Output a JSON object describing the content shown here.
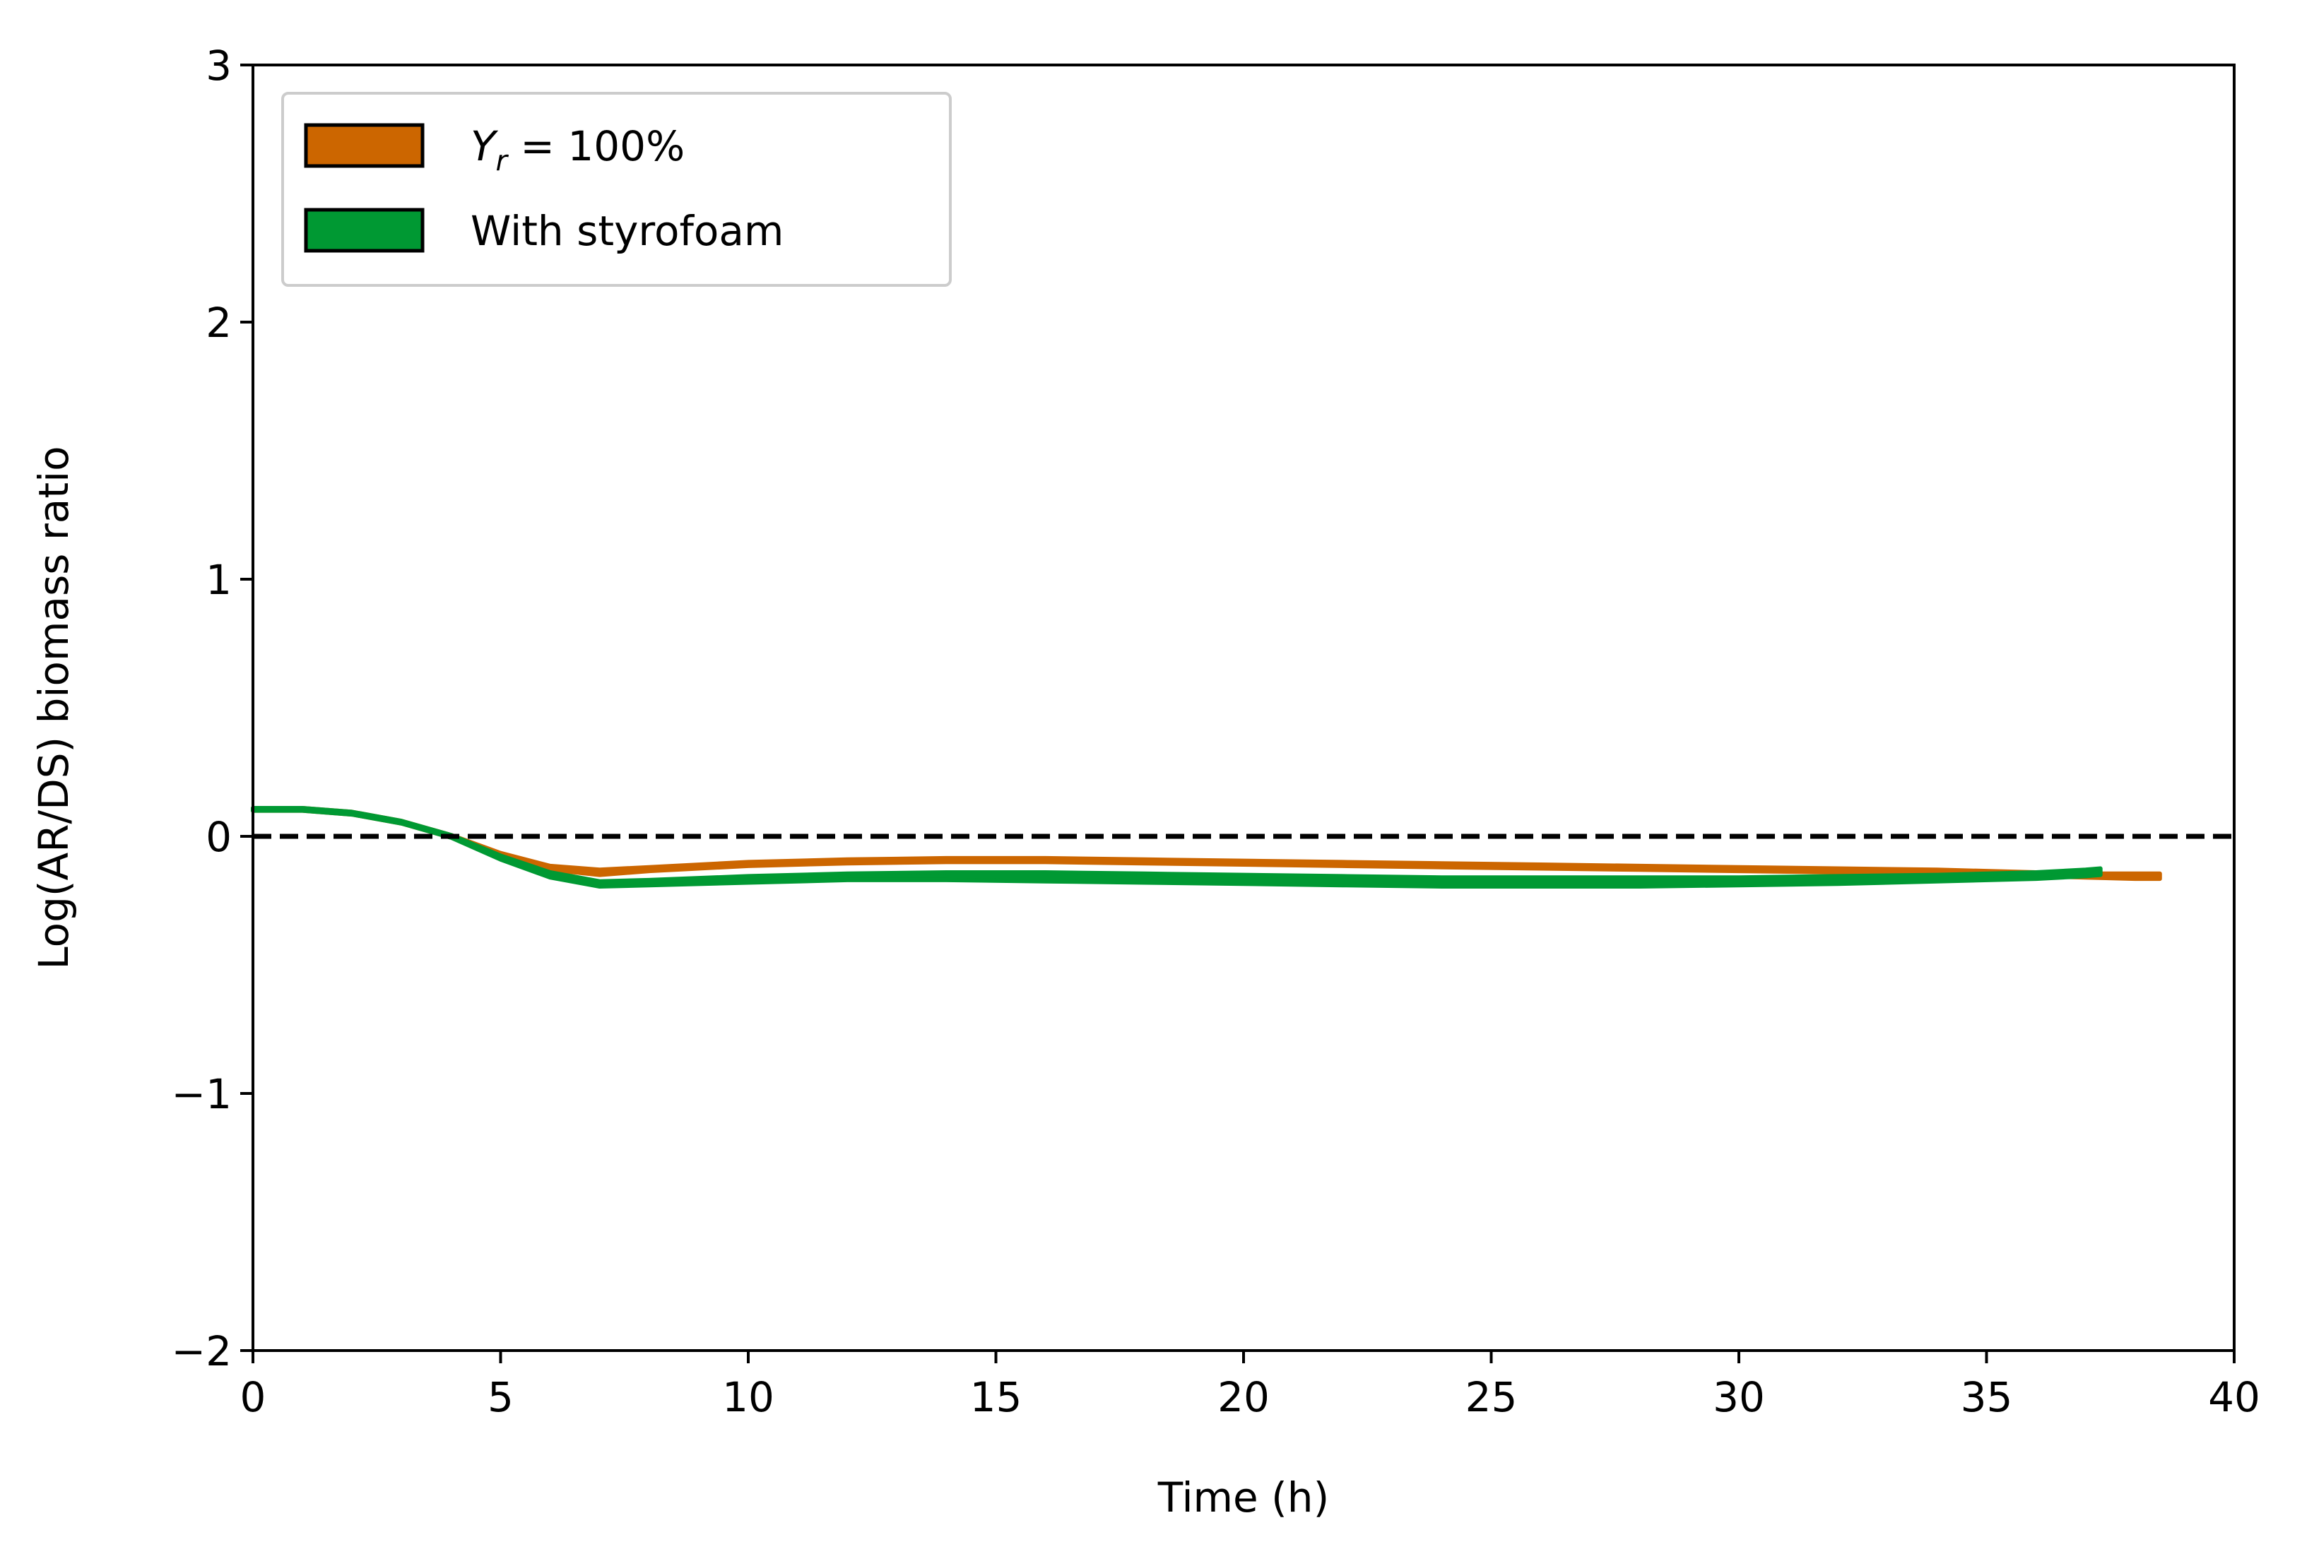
{
  "chart_data": {
    "type": "area",
    "xlabel": "Time (h)",
    "ylabel": "Log(AR/DS) biomass ratio",
    "xlim": [
      0,
      40
    ],
    "ylim": [
      -2,
      3
    ],
    "xticks": [
      0,
      5,
      10,
      15,
      20,
      25,
      30,
      35,
      40
    ],
    "yticks": [
      -2,
      -1,
      0,
      1,
      2,
      3
    ],
    "xtick_labels": [
      "0",
      "5",
      "10",
      "15",
      "20",
      "25",
      "30",
      "35",
      "40"
    ],
    "ytick_labels": [
      "−2",
      "−1",
      "0",
      "1",
      "2",
      "3"
    ],
    "grid": false,
    "legend_position": "top-left",
    "reference_line": {
      "y": 0,
      "style": "dashed",
      "color": "#000000"
    },
    "series": [
      {
        "name": "Y_r = 100%",
        "legend_label": {
          "var": "Y",
          "sub": "r",
          "rest": " = 100%"
        },
        "color": "#CC6600",
        "x": [
          0,
          1,
          2,
          3,
          4,
          5,
          6,
          7,
          8,
          10,
          12,
          14,
          16,
          18,
          20,
          22,
          24,
          26,
          28,
          30,
          32,
          34,
          36,
          37,
          38,
          38.5
        ],
        "lower": [
          0.1,
          0.1,
          0.085,
          0.05,
          -0.005,
          -0.075,
          -0.13,
          -0.15,
          -0.135,
          -0.115,
          -0.105,
          -0.1,
          -0.1,
          -0.105,
          -0.11,
          -0.115,
          -0.12,
          -0.125,
          -0.13,
          -0.135,
          -0.14,
          -0.145,
          -0.155,
          -0.16,
          -0.165,
          -0.165
        ],
        "upper": [
          0.11,
          0.11,
          0.095,
          0.06,
          0.005,
          -0.065,
          -0.115,
          -0.13,
          -0.12,
          -0.1,
          -0.09,
          -0.085,
          -0.085,
          -0.09,
          -0.095,
          -0.1,
          -0.105,
          -0.11,
          -0.115,
          -0.12,
          -0.125,
          -0.13,
          -0.14,
          -0.145,
          -0.145,
          -0.145
        ]
      },
      {
        "name": "With styrofoam",
        "color": "#009933",
        "x": [
          0,
          1,
          2,
          3,
          4,
          5,
          6,
          7,
          8,
          10,
          12,
          14,
          16,
          18,
          20,
          22,
          24,
          26,
          28,
          30,
          32,
          34,
          36,
          37,
          37.3
        ],
        "lower": [
          0.1,
          0.1,
          0.085,
          0.05,
          -0.005,
          -0.09,
          -0.16,
          -0.195,
          -0.19,
          -0.18,
          -0.17,
          -0.17,
          -0.175,
          -0.18,
          -0.185,
          -0.19,
          -0.195,
          -0.195,
          -0.195,
          -0.19,
          -0.185,
          -0.175,
          -0.165,
          -0.155,
          -0.15
        ],
        "upper": [
          0.11,
          0.11,
          0.095,
          0.06,
          0.005,
          -0.075,
          -0.14,
          -0.175,
          -0.17,
          -0.155,
          -0.145,
          -0.14,
          -0.14,
          -0.145,
          -0.15,
          -0.155,
          -0.16,
          -0.16,
          -0.16,
          -0.16,
          -0.155,
          -0.15,
          -0.14,
          -0.13,
          -0.125
        ]
      }
    ]
  }
}
